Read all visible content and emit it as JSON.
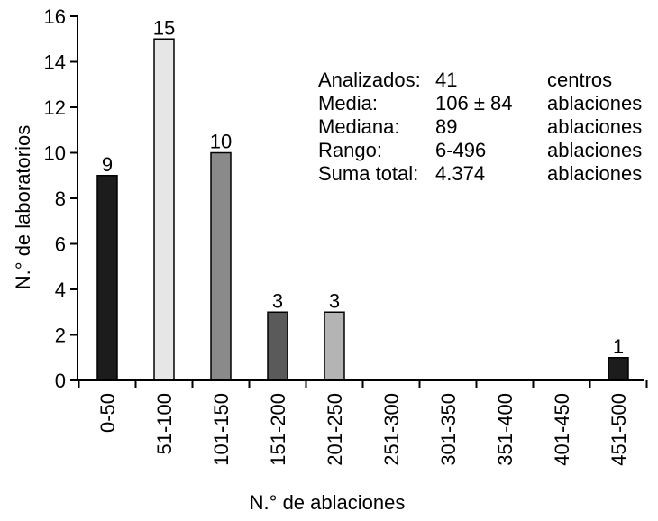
{
  "chart_data": {
    "type": "bar",
    "xlabel": "N.° de ablaciones",
    "ylabel": "N.° de laboratorios",
    "ylim": [
      0,
      16
    ],
    "yticks": [
      0,
      2,
      4,
      6,
      8,
      10,
      12,
      14,
      16
    ],
    "grid": false,
    "categories": [
      "0-50",
      "51-100",
      "101-150",
      "151-200",
      "201-250",
      "251-300",
      "301-350",
      "351-400",
      "401-450",
      "451-500"
    ],
    "values": [
      9,
      15,
      10,
      3,
      3,
      0,
      0,
      0,
      0,
      1
    ],
    "data_labels": [
      "9",
      "15",
      "10",
      "3",
      "3",
      "",
      "",
      "",
      "",
      "1"
    ],
    "bar_colors": [
      "#1c1c1c",
      "#e6e6e6",
      "#8a8a8a",
      "#5a5a5a",
      "#b4b4b4",
      "#ffffff",
      "#ffffff",
      "#ffffff",
      "#ffffff",
      "#1c1c1c"
    ],
    "annotation": [
      {
        "label": "Analizados:",
        "value": "41",
        "unit": "centros"
      },
      {
        "label": "Media:",
        "value": "106 ± 84",
        "unit": "ablaciones"
      },
      {
        "label": "Mediana:",
        "value": "89",
        "unit": "ablaciones"
      },
      {
        "label": "Rango:",
        "value": "6-496",
        "unit": "ablaciones"
      },
      {
        "label": "Suma total:",
        "value": "4.374",
        "unit": "ablaciones"
      }
    ]
  }
}
